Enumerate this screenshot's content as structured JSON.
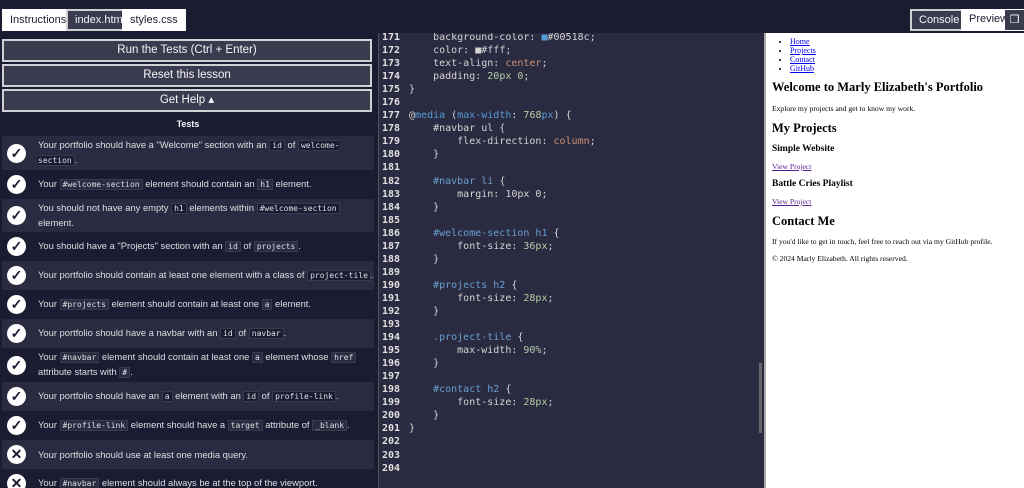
{
  "tabs": {
    "instructions": "Instructions",
    "index": "index.html",
    "styles": "styles.css",
    "console": "Console",
    "preview": "Preview"
  },
  "buttons": {
    "run": "Run the Tests (Ctrl + Enter)",
    "reset": "Reset this lesson",
    "help": "Get Help ▴"
  },
  "tests_heading": "Tests",
  "tests": [
    {
      "status": "pass",
      "parts": [
        {
          "t": "Your portfolio should have a \"Welcome\" section with an "
        },
        {
          "c": "id"
        },
        {
          "t": " of "
        },
        {
          "c": "welcome-section"
        },
        {
          "t": "."
        }
      ]
    },
    {
      "status": "pass",
      "parts": [
        {
          "t": "Your "
        },
        {
          "c": "#welcome-section"
        },
        {
          "t": " element should contain an "
        },
        {
          "c": "h1"
        },
        {
          "t": " element."
        }
      ]
    },
    {
      "status": "pass",
      "parts": [
        {
          "t": "You should not have any empty "
        },
        {
          "c": "h1"
        },
        {
          "t": " elements within "
        },
        {
          "c": "#welcome-section"
        },
        {
          "t": " element."
        }
      ]
    },
    {
      "status": "pass",
      "parts": [
        {
          "t": "You should have a \"Projects\" section with an "
        },
        {
          "c": "id"
        },
        {
          "t": " of "
        },
        {
          "c": "projects"
        },
        {
          "t": "."
        }
      ]
    },
    {
      "status": "pass",
      "parts": [
        {
          "t": "Your portfolio should contain at least one element with a class of "
        },
        {
          "c": "project-tile"
        },
        {
          "t": "."
        }
      ]
    },
    {
      "status": "pass",
      "parts": [
        {
          "t": "Your "
        },
        {
          "c": "#projects"
        },
        {
          "t": " element should contain at least one "
        },
        {
          "c": "a"
        },
        {
          "t": " element."
        }
      ]
    },
    {
      "status": "pass",
      "parts": [
        {
          "t": "Your portfolio should have a navbar with an "
        },
        {
          "c": "id"
        },
        {
          "t": " of "
        },
        {
          "c": "navbar"
        },
        {
          "t": "."
        }
      ]
    },
    {
      "status": "pass",
      "parts": [
        {
          "t": "Your "
        },
        {
          "c": "#navbar"
        },
        {
          "t": " element should contain at least one "
        },
        {
          "c": "a"
        },
        {
          "t": " element whose "
        },
        {
          "c": "href"
        },
        {
          "t": " attribute starts with "
        },
        {
          "c": "#"
        },
        {
          "t": "."
        }
      ]
    },
    {
      "status": "pass",
      "parts": [
        {
          "t": "Your portfolio should have an "
        },
        {
          "c": "a"
        },
        {
          "t": " element with an "
        },
        {
          "c": "id"
        },
        {
          "t": " of "
        },
        {
          "c": "profile-link"
        },
        {
          "t": "."
        }
      ]
    },
    {
      "status": "pass",
      "parts": [
        {
          "t": "Your "
        },
        {
          "c": "#profile-link"
        },
        {
          "t": " element should have a "
        },
        {
          "c": "target"
        },
        {
          "t": " attribute of "
        },
        {
          "c": "_blank"
        },
        {
          "t": "."
        }
      ]
    },
    {
      "status": "fail",
      "parts": [
        {
          "t": "Your portfolio should use at least one media query."
        }
      ]
    },
    {
      "status": "fail",
      "parts": [
        {
          "t": "Your "
        },
        {
          "c": "#navbar"
        },
        {
          "t": " element should always be at the top of the viewport."
        }
      ]
    }
  ],
  "code": [
    {
      "n": "171",
      "tokens": [
        [
          "    background-color: ",
          "p"
        ],
        [
          "■",
          "k"
        ],
        [
          "#00518c;",
          "p"
        ]
      ]
    },
    {
      "n": "172",
      "tokens": [
        [
          "    color: ",
          "p"
        ],
        [
          "■",
          "p"
        ],
        [
          "#fff;",
          "p"
        ]
      ]
    },
    {
      "n": "173",
      "tokens": [
        [
          "    text-align: ",
          "p"
        ],
        [
          "center",
          "s"
        ],
        [
          ";",
          "p"
        ]
      ]
    },
    {
      "n": "174",
      "tokens": [
        [
          "    padding: ",
          "p"
        ],
        [
          "20px 0",
          "n"
        ],
        [
          ";",
          "p"
        ]
      ]
    },
    {
      "n": "175",
      "tokens": [
        [
          "}",
          "p"
        ]
      ]
    },
    {
      "n": "176",
      "tokens": []
    },
    {
      "n": "177",
      "tokens": [
        [
          "@",
          "p"
        ],
        [
          "media",
          "k"
        ],
        [
          " (",
          "p"
        ],
        [
          "max-width",
          "k"
        ],
        [
          ": ",
          "p"
        ],
        [
          "768",
          "n"
        ],
        [
          "px",
          "k"
        ],
        [
          ") {",
          "p"
        ]
      ]
    },
    {
      "n": "178",
      "tokens": [
        [
          "    #navbar ul {",
          "p"
        ]
      ]
    },
    {
      "n": "179",
      "tokens": [
        [
          "        flex-direction: ",
          "p"
        ],
        [
          "column",
          "s"
        ],
        [
          ";",
          "p"
        ]
      ]
    },
    {
      "n": "180",
      "tokens": [
        [
          "    }",
          "p"
        ]
      ]
    },
    {
      "n": "181",
      "tokens": []
    },
    {
      "n": "182",
      "tokens": [
        [
          "    #navbar li",
          "sel"
        ],
        [
          " {",
          "p"
        ]
      ]
    },
    {
      "n": "183",
      "tokens": [
        [
          "        margin: 10px 0;",
          "p"
        ]
      ]
    },
    {
      "n": "184",
      "tokens": [
        [
          "    }",
          "p"
        ]
      ]
    },
    {
      "n": "185",
      "tokens": []
    },
    {
      "n": "186",
      "tokens": [
        [
          "    #welcome-section h1",
          "sel"
        ],
        [
          " {",
          "p"
        ]
      ]
    },
    {
      "n": "187",
      "tokens": [
        [
          "        font-size: ",
          "p"
        ],
        [
          "36px",
          "n"
        ],
        [
          ";",
          "p"
        ]
      ]
    },
    {
      "n": "188",
      "tokens": [
        [
          "    }",
          "p"
        ]
      ]
    },
    {
      "n": "189",
      "tokens": []
    },
    {
      "n": "190",
      "tokens": [
        [
          "    #projects h2",
          "sel"
        ],
        [
          " {",
          "p"
        ]
      ]
    },
    {
      "n": "191",
      "tokens": [
        [
          "        font-size: ",
          "p"
        ],
        [
          "28px",
          "n"
        ],
        [
          ";",
          "p"
        ]
      ]
    },
    {
      "n": "192",
      "tokens": [
        [
          "    }",
          "p"
        ]
      ]
    },
    {
      "n": "193",
      "tokens": []
    },
    {
      "n": "194",
      "tokens": [
        [
          "    .project-tile",
          "sel"
        ],
        [
          " {",
          "p"
        ]
      ]
    },
    {
      "n": "195",
      "tokens": [
        [
          "        max-width: ",
          "p"
        ],
        [
          "90%",
          "n"
        ],
        [
          ";",
          "p"
        ]
      ]
    },
    {
      "n": "196",
      "tokens": [
        [
          "    }",
          "p"
        ]
      ]
    },
    {
      "n": "197",
      "tokens": []
    },
    {
      "n": "198",
      "tokens": [
        [
          "    #contact h2",
          "sel"
        ],
        [
          " {",
          "p"
        ]
      ]
    },
    {
      "n": "199",
      "tokens": [
        [
          "        font-size: ",
          "p"
        ],
        [
          "28px",
          "n"
        ],
        [
          ";",
          "p"
        ]
      ]
    },
    {
      "n": "200",
      "tokens": [
        [
          "    }",
          "p"
        ]
      ]
    },
    {
      "n": "201",
      "tokens": [
        [
          "}",
          "p"
        ]
      ]
    },
    {
      "n": "202",
      "tokens": []
    },
    {
      "n": "203",
      "tokens": []
    },
    {
      "n": "204",
      "tokens": []
    }
  ],
  "preview": {
    "nav": [
      "Home",
      "Projects",
      "Contact",
      "GitHub"
    ],
    "h1": "Welcome to Marly Elizabeth's Portfolio",
    "intro": "Explore my projects and get to know my work.",
    "projects_h2": "My Projects",
    "projects": [
      {
        "title": "Simple Website",
        "link": "View Project"
      },
      {
        "title": "Battle Cries Playlist",
        "link": "View Project"
      }
    ],
    "contact_h2": "Contact Me",
    "contact_p": "If you'd like to get in touch, feel free to reach out via my GitHub profile.",
    "footer": "© 2024 Marly Elizabeth. All rights reserved."
  }
}
